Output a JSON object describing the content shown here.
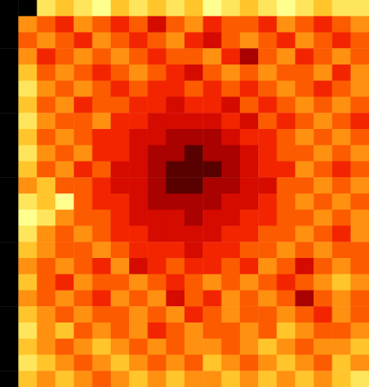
{
  "chart_data": {
    "type": "heatmap",
    "tick_labels": false,
    "zlim": [
      0,
      9
    ],
    "cells": [
      [
        0,
        0,
        8,
        7,
        8,
        9,
        7,
        8,
        7,
        8,
        7,
        9,
        8,
        7,
        8,
        9,
        8,
        7,
        8,
        8
      ],
      [
        0,
        6,
        5,
        4,
        6,
        5,
        4,
        5,
        3,
        5,
        6,
        4,
        5,
        5,
        4,
        6,
        5,
        4,
        5,
        6
      ],
      [
        0,
        5,
        6,
        5,
        4,
        6,
        5,
        4,
        5,
        6,
        4,
        3,
        5,
        6,
        5,
        4,
        6,
        5,
        4,
        5
      ],
      [
        0,
        6,
        4,
        5,
        6,
        5,
        6,
        5,
        4,
        5,
        5,
        6,
        4,
        2,
        5,
        6,
        4,
        5,
        6,
        5
      ],
      [
        0,
        7,
        5,
        6,
        5,
        4,
        5,
        6,
        5,
        4,
        3,
        5,
        6,
        5,
        6,
        5,
        5,
        6,
        4,
        6
      ],
      [
        0,
        8,
        6,
        5,
        6,
        5,
        4,
        5,
        4,
        4,
        5,
        4,
        5,
        4,
        5,
        6,
        5,
        4,
        5,
        6
      ],
      [
        0,
        7,
        5,
        6,
        4,
        5,
        5,
        4,
        4,
        3,
        4,
        4,
        3,
        5,
        4,
        5,
        6,
        5,
        6,
        5
      ],
      [
        0,
        8,
        6,
        5,
        5,
        6,
        4,
        4,
        3,
        3,
        3,
        3,
        4,
        3,
        5,
        4,
        5,
        6,
        5,
        4
      ],
      [
        0,
        7,
        5,
        6,
        5,
        4,
        4,
        3,
        3,
        2,
        2,
        2,
        3,
        4,
        4,
        5,
        6,
        5,
        6,
        5
      ],
      [
        0,
        8,
        6,
        5,
        6,
        4,
        4,
        3,
        2,
        2,
        1,
        2,
        2,
        3,
        4,
        5,
        5,
        6,
        5,
        6
      ],
      [
        0,
        7,
        5,
        6,
        4,
        5,
        3,
        3,
        2,
        1,
        1,
        1,
        2,
        3,
        4,
        4,
        6,
        5,
        4,
        5
      ],
      [
        0,
        6,
        7,
        5,
        5,
        4,
        3,
        3,
        2,
        1,
        1,
        2,
        2,
        3,
        3,
        5,
        5,
        6,
        5,
        6
      ],
      [
        0,
        8,
        7,
        9,
        5,
        4,
        4,
        3,
        2,
        2,
        2,
        2,
        3,
        3,
        4,
        5,
        6,
        5,
        6,
        5
      ],
      [
        0,
        9,
        8,
        6,
        5,
        5,
        4,
        3,
        3,
        3,
        2,
        3,
        3,
        4,
        4,
        5,
        5,
        6,
        5,
        6
      ],
      [
        0,
        8,
        6,
        5,
        6,
        5,
        4,
        4,
        3,
        3,
        3,
        3,
        4,
        4,
        5,
        5,
        6,
        5,
        4,
        6
      ],
      [
        0,
        7,
        6,
        5,
        5,
        6,
        5,
        4,
        4,
        4,
        3,
        4,
        4,
        5,
        5,
        6,
        5,
        6,
        5,
        5
      ],
      [
        0,
        6,
        5,
        6,
        5,
        4,
        6,
        3,
        4,
        5,
        4,
        4,
        5,
        4,
        6,
        5,
        3,
        5,
        6,
        5
      ],
      [
        0,
        7,
        5,
        4,
        6,
        5,
        5,
        6,
        5,
        4,
        5,
        6,
        5,
        6,
        5,
        4,
        5,
        6,
        7,
        6
      ],
      [
        0,
        6,
        5,
        6,
        5,
        4,
        6,
        5,
        6,
        3,
        5,
        4,
        6,
        5,
        6,
        5,
        2,
        5,
        6,
        5
      ],
      [
        0,
        7,
        6,
        5,
        6,
        5,
        5,
        6,
        5,
        6,
        4,
        5,
        6,
        5,
        5,
        6,
        5,
        4,
        6,
        5
      ],
      [
        0,
        8,
        6,
        7,
        5,
        6,
        5,
        6,
        4,
        5,
        6,
        5,
        5,
        6,
        5,
        7,
        6,
        5,
        5,
        6
      ],
      [
        0,
        7,
        6,
        5,
        6,
        7,
        6,
        5,
        6,
        5,
        6,
        6,
        5,
        6,
        7,
        6,
        5,
        6,
        6,
        7
      ],
      [
        0,
        8,
        7,
        6,
        5,
        6,
        7,
        6,
        5,
        6,
        5,
        7,
        6,
        5,
        6,
        7,
        6,
        5,
        7,
        6
      ],
      [
        0,
        7,
        6,
        7,
        6,
        5,
        6,
        7,
        6,
        7,
        6,
        6,
        7,
        6,
        7,
        6,
        7,
        6,
        7,
        8
      ]
    ]
  }
}
